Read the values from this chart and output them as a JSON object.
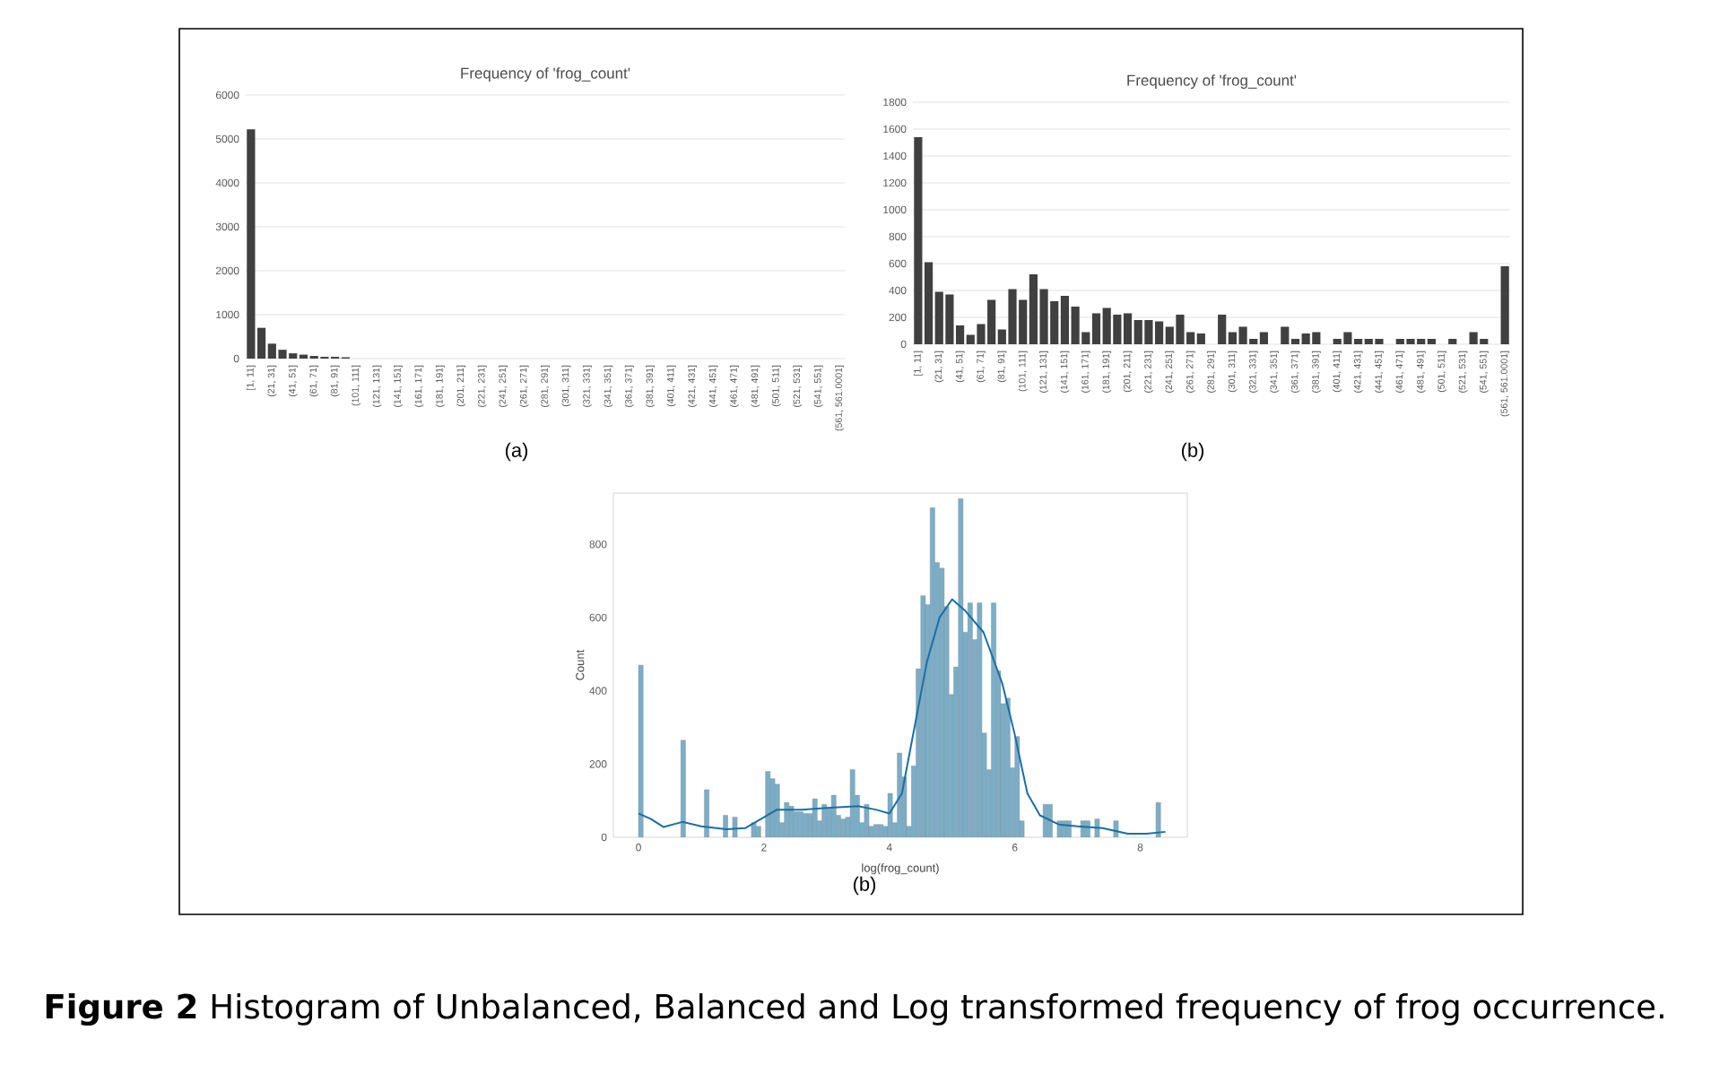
{
  "chart_data": [
    {
      "type": "bar",
      "title": "Frequency of 'frog_count'",
      "categories": [
        "[1, 11]",
        null,
        "(21, 31]",
        null,
        "(41, 51]",
        null,
        "(61, 71]",
        null,
        "(81, 91]",
        null,
        "(101, 111]",
        null,
        "(121, 131]",
        null,
        "(141, 151]",
        null,
        "(161, 171]",
        null,
        "(181, 191]",
        null,
        "(201, 211]",
        null,
        "(221, 231]",
        null,
        "(241, 251]",
        null,
        "(261, 271]",
        null,
        "(281, 291]",
        null,
        "(301, 311]",
        null,
        "(321, 331]",
        null,
        "(341, 351]",
        null,
        "(361, 371]",
        null,
        "(381, 391]",
        null,
        "(401, 411]",
        null,
        "(421, 431]",
        null,
        "(441, 451]",
        null,
        "(461, 471]",
        null,
        "(481, 491]",
        null,
        "(501, 511]",
        null,
        "(521, 531]",
        null,
        "(541, 551]",
        null,
        "(561, 561.0001]"
      ],
      "values": [
        5220,
        700,
        340,
        200,
        120,
        90,
        60,
        40,
        40,
        30,
        0,
        0,
        0,
        0,
        0,
        0,
        0,
        0,
        0,
        0,
        0,
        0,
        0,
        0,
        0,
        0,
        0,
        0,
        0,
        0,
        0,
        0,
        0,
        0,
        0,
        0,
        0,
        0,
        0,
        0,
        0,
        0,
        0,
        0,
        0,
        0,
        0,
        0,
        0,
        0,
        0,
        0,
        0,
        0,
        0,
        0,
        0
      ],
      "color": "#404040",
      "ylim": [
        0,
        6000
      ],
      "yticks": [
        0,
        1000,
        2000,
        3000,
        4000,
        5000,
        6000
      ],
      "grid": "y",
      "annotations": [
        "(a)"
      ]
    },
    {
      "type": "bar",
      "title": "Frequency of 'frog_count'",
      "categories": [
        "[1, 11]",
        null,
        "(21, 31]",
        null,
        "(41, 51]",
        null,
        "(61, 71]",
        null,
        "(81, 91]",
        null,
        "(101, 111]",
        null,
        "(121, 131]",
        null,
        "(141, 151]",
        null,
        "(161, 171]",
        null,
        "(181, 191]",
        null,
        "(201, 211]",
        null,
        "(221, 231]",
        null,
        "(241, 251]",
        null,
        "(261, 271]",
        null,
        "(281, 291]",
        null,
        "(301, 311]",
        null,
        "(321, 331]",
        null,
        "(341, 351]",
        null,
        "(361, 371]",
        null,
        "(381, 391]",
        null,
        "(401, 411]",
        null,
        "(421, 431]",
        null,
        "(441, 451]",
        null,
        "(461, 471]",
        null,
        "(481, 491]",
        null,
        "(501, 511]",
        null,
        "(521, 531]",
        null,
        "(541, 551]",
        null,
        "(561, 561.0001]"
      ],
      "values": [
        1540,
        610,
        390,
        370,
        140,
        70,
        150,
        330,
        110,
        410,
        330,
        520,
        410,
        320,
        360,
        280,
        90,
        230,
        270,
        220,
        230,
        180,
        180,
        170,
        130,
        220,
        90,
        80,
        0,
        220,
        90,
        130,
        40,
        90,
        0,
        130,
        40,
        80,
        90,
        0,
        40,
        90,
        40,
        40,
        40,
        0,
        40,
        40,
        40,
        40,
        0,
        40,
        0,
        90,
        40,
        0,
        580
      ],
      "color": "#404040",
      "ylim": [
        0,
        1800
      ],
      "yticks": [
        0,
        200,
        400,
        600,
        800,
        1000,
        1200,
        1400,
        1600,
        1800
      ],
      "grid": "y",
      "annotations": [
        "(b)"
      ]
    },
    {
      "type": "histogram",
      "xlabel": "log(frog_count)",
      "ylabel": "Count",
      "color": "#7aaec8",
      "bins": [
        0,
        0.075,
        0.15,
        0.225,
        0.3,
        0.375,
        0.45,
        0.525,
        0.6,
        0.675,
        0.75,
        0.825,
        0.9,
        0.975,
        1.05,
        1.125,
        1.2,
        1.275,
        1.35,
        1.425,
        1.5,
        1.575,
        1.65,
        1.725,
        1.8,
        1.875,
        1.95,
        2.025,
        2.1,
        2.175,
        2.25,
        2.325,
        2.4,
        2.475,
        2.55,
        2.625,
        2.7,
        2.775,
        2.85,
        2.925,
        3,
        3.075,
        3.15,
        3.225,
        3.3,
        3.375,
        3.45,
        3.525,
        3.6,
        3.675,
        3.75,
        3.825,
        3.9,
        3.975,
        4.05,
        4.125,
        4.2,
        4.275,
        4.35,
        4.425,
        4.5,
        4.575,
        4.65,
        4.725,
        4.8,
        4.875,
        4.95,
        5.025,
        5.1,
        5.175,
        5.25,
        5.325,
        5.4,
        5.475,
        5.55,
        5.625,
        5.7,
        5.775,
        5.85,
        5.925,
        6,
        6.075,
        6.15,
        6.225,
        6.3,
        6.375,
        6.45,
        6.525,
        6.6,
        6.675,
        6.75,
        6.825,
        6.9,
        6.975,
        7.05,
        7.125,
        7.2,
        7.275,
        7.35,
        7.425,
        7.5,
        7.575,
        7.65,
        7.725,
        7.8,
        7.875,
        7.95,
        8.025,
        8.1,
        8.175,
        8.25,
        8.325,
        8.4
      ],
      "values": [
        470,
        0,
        0,
        0,
        0,
        0,
        0,
        0,
        0,
        265,
        0,
        0,
        0,
        0,
        130,
        0,
        0,
        0,
        60,
        0,
        55,
        0,
        0,
        0,
        40,
        30,
        0,
        180,
        160,
        145,
        40,
        95,
        85,
        70,
        70,
        65,
        65,
        105,
        45,
        90,
        80,
        115,
        60,
        50,
        55,
        185,
        115,
        40,
        90,
        30,
        35,
        35,
        30,
        120,
        40,
        230,
        165,
        30,
        195,
        460,
        660,
        635,
        900,
        750,
        735,
        630,
        390,
        465,
        925,
        560,
        640,
        540,
        640,
        285,
        185,
        640,
        455,
        365,
        380,
        190,
        275,
        45,
        0,
        0,
        0,
        0,
        90,
        90,
        0,
        45,
        45,
        45,
        0,
        0,
        45,
        45,
        0,
        50,
        0,
        0,
        0,
        45,
        0,
        0,
        0,
        0,
        0,
        0,
        0,
        0,
        95,
        0
      ],
      "series": [
        {
          "type": "line",
          "color": "#1a6fa3",
          "x": [
            0,
            0.2,
            0.4,
            0.7,
            1.0,
            1.4,
            1.7,
            2.0,
            2.2,
            2.6,
            3.0,
            3.5,
            3.8,
            4.0,
            4.2,
            4.4,
            4.6,
            4.8,
            5.0,
            5.2,
            5.5,
            5.8,
            6.0,
            6.2,
            6.4,
            6.7,
            7.0,
            7.4,
            7.8,
            8.1,
            8.4
          ],
          "values": [
            65,
            50,
            28,
            42,
            30,
            22,
            25,
            55,
            75,
            75,
            80,
            85,
            75,
            65,
            120,
            300,
            480,
            600,
            650,
            620,
            560,
            420,
            280,
            120,
            60,
            35,
            30,
            25,
            10,
            10,
            15
          ]
        }
      ],
      "xlim": [
        -0.4,
        8.75
      ],
      "ylim": [
        0,
        940
      ],
      "xticks": [
        0,
        2,
        4,
        6,
        8
      ],
      "yticks": [
        0,
        200,
        400,
        600,
        800
      ],
      "annotations": [
        "(b)",
        "**Figure 2** Histogram of Unbalanced, Balanced and Log transformed frequency of frog occurrence."
      ]
    }
  ]
}
